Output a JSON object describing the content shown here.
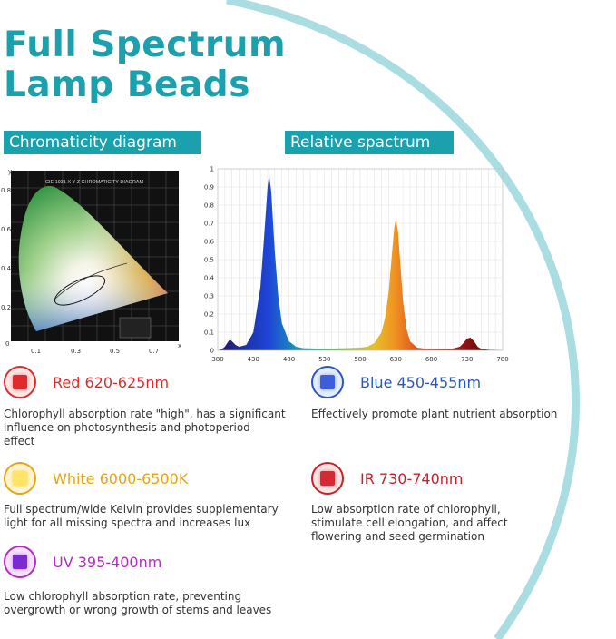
{
  "title_line1": "Full Spectrum",
  "title_line2": "Lamp Beads",
  "sections": {
    "chromaticity": "Chromaticity diagram",
    "spectrum": "Relative spactrum"
  },
  "cie": {
    "header": "CIE 1931 X Y Z CHROMATICITY DIAGRAM",
    "y_axis_label": "y",
    "x_axis_label": "x",
    "y_ticks": [
      "0.8",
      "0.6",
      "0.4",
      "0.2",
      "0"
    ],
    "x_ticks": [
      "0.1",
      "0.3",
      "0.5",
      "0.7"
    ]
  },
  "chart_data": {
    "type": "area",
    "x_ticks": [
      380,
      430,
      480,
      530,
      580,
      630,
      680,
      730,
      780
    ],
    "y_ticks": [
      0,
      0.1,
      0.2,
      0.3,
      0.4,
      0.5,
      0.6,
      0.7,
      0.8,
      0.9,
      1
    ],
    "xlim": [
      380,
      780
    ],
    "ylim": [
      0,
      1
    ],
    "grid": true,
    "peaks": [
      {
        "wavelength": 397,
        "value": 0.06
      },
      {
        "wavelength": 452,
        "value": 0.97
      },
      {
        "wavelength": 630,
        "value": 0.72
      },
      {
        "wavelength": 735,
        "value": 0.07
      }
    ],
    "x": [
      380,
      385,
      390,
      395,
      397,
      400,
      405,
      410,
      420,
      430,
      440,
      445,
      450,
      452,
      455,
      460,
      465,
      470,
      480,
      490,
      500,
      520,
      540,
      560,
      580,
      590,
      600,
      610,
      615,
      620,
      625,
      628,
      630,
      633,
      636,
      640,
      645,
      650,
      660,
      670,
      680,
      700,
      710,
      720,
      725,
      730,
      735,
      740,
      745,
      750,
      760,
      780
    ],
    "values": [
      0,
      0.005,
      0.02,
      0.05,
      0.06,
      0.05,
      0.03,
      0.02,
      0.03,
      0.1,
      0.35,
      0.62,
      0.9,
      0.97,
      0.88,
      0.55,
      0.3,
      0.15,
      0.05,
      0.02,
      0.012,
      0.01,
      0.01,
      0.012,
      0.015,
      0.02,
      0.04,
      0.1,
      0.18,
      0.32,
      0.55,
      0.68,
      0.72,
      0.66,
      0.5,
      0.28,
      0.12,
      0.05,
      0.015,
      0.01,
      0.008,
      0.008,
      0.01,
      0.02,
      0.04,
      0.065,
      0.07,
      0.05,
      0.02,
      0.008,
      0.003,
      0
    ]
  },
  "items": {
    "red": {
      "title": "Red 620-625nm",
      "desc1": "Chlorophyll absorption rate \"high\", has a significant",
      "desc2": "influence on photosynthesis and photoperiod",
      "desc3": "effect",
      "color": "#e02b2b"
    },
    "blue": {
      "title": "Blue 450-455nm",
      "desc1": "Effectively promote plant nutrient absorption",
      "color": "#2a55c9"
    },
    "white": {
      "title": "White 6000-6500K",
      "desc1": "Full spectrum/wide Kelvin provides supplementary",
      "desc2": "light for all missing spectra and increases lux",
      "color": "#e8a413"
    },
    "ir": {
      "title": "IR 730-740nm",
      "desc1": "Low absorption rate of chlorophyll,",
      "desc2": "stimulate cell elongation, and affect",
      "desc3": "flowering and seed germination",
      "color": "#c8202a"
    },
    "uv": {
      "title": "UV 395-400nm",
      "desc1": "Low chlorophyll absorption rate, preventing",
      "desc2": "overgrowth or wrong growth of stems and leaves",
      "color": "#b42dc3"
    }
  }
}
